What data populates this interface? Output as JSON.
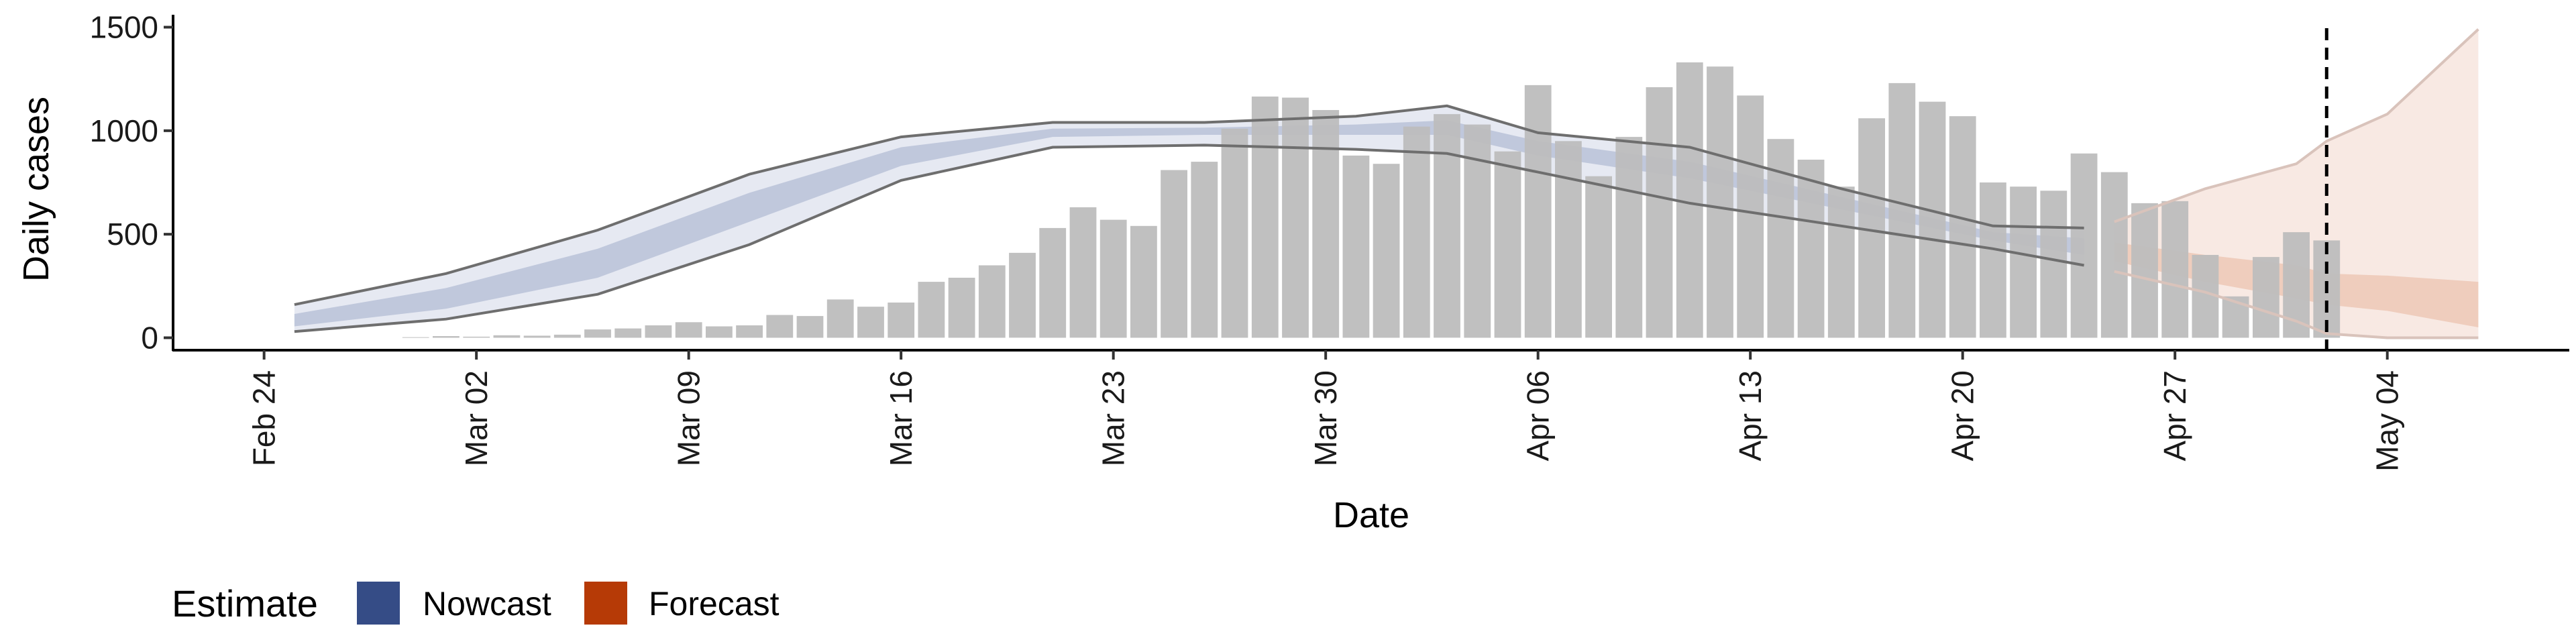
{
  "chart_data": {
    "type": "bar",
    "x_type": "date",
    "xlabel": "Date",
    "ylabel": "Daily cases",
    "x_ticks": [
      "2020-02-24",
      "2020-03-02",
      "2020-03-09",
      "2020-03-16",
      "2020-03-23",
      "2020-03-30",
      "2020-04-06",
      "2020-04-13",
      "2020-04-20",
      "2020-04-27",
      "2020-05-04"
    ],
    "x_tick_labels": [
      "Feb 24",
      "Mar 02",
      "Mar 09",
      "Mar 16",
      "Mar 23",
      "Mar 30",
      "Apr 06",
      "Apr 13",
      "Apr 20",
      "Apr 27",
      "May 04"
    ],
    "xlim": [
      "2020-02-21",
      "2020-05-10"
    ],
    "ylim": [
      -60,
      1560
    ],
    "y_ticks": [
      0,
      500,
      1000,
      1500
    ],
    "y_tick_labels": [
      "0",
      "500",
      "1000",
      "1500"
    ],
    "grid": false,
    "legend": {
      "title": "Estimate",
      "position": "bottom-left",
      "items": [
        {
          "label": "Nowcast",
          "color": "#354c86"
        },
        {
          "label": "Forecast",
          "color": "#b63a06"
        }
      ]
    },
    "colors": {
      "bars": "#bdbdbd",
      "nowcast_outer": "#e6e9f2",
      "nowcast_inner": "#c0c8dc",
      "forecast_outer": "#f8e9e3",
      "forecast_inner": "#efcdbd",
      "bound_line": "#6e6e6e",
      "forecast_line": "#d9c3bb",
      "divider": "#000000"
    },
    "bars": {
      "dates": [
        "2020-02-29",
        "2020-03-01",
        "2020-03-02",
        "2020-03-03",
        "2020-03-04",
        "2020-03-05",
        "2020-03-06",
        "2020-03-07",
        "2020-03-08",
        "2020-03-09",
        "2020-03-10",
        "2020-03-11",
        "2020-03-12",
        "2020-03-13",
        "2020-03-14",
        "2020-03-15",
        "2020-03-16",
        "2020-03-17",
        "2020-03-18",
        "2020-03-19",
        "2020-03-20",
        "2020-03-21",
        "2020-03-22",
        "2020-03-23",
        "2020-03-24",
        "2020-03-25",
        "2020-03-26",
        "2020-03-27",
        "2020-03-28",
        "2020-03-29",
        "2020-03-30",
        "2020-03-31",
        "2020-04-01",
        "2020-04-02",
        "2020-04-03",
        "2020-04-04",
        "2020-04-05",
        "2020-04-06",
        "2020-04-07",
        "2020-04-08",
        "2020-04-09",
        "2020-04-10",
        "2020-04-11",
        "2020-04-12",
        "2020-04-13",
        "2020-04-14",
        "2020-04-15",
        "2020-04-16",
        "2020-04-17",
        "2020-04-18",
        "2020-04-19",
        "2020-04-20",
        "2020-04-21",
        "2020-04-22",
        "2020-04-23",
        "2020-04-24",
        "2020-04-25",
        "2020-04-26",
        "2020-04-27",
        "2020-04-28",
        "2020-04-29",
        "2020-04-30",
        "2020-05-01",
        "2020-05-02"
      ],
      "values": [
        3,
        8,
        5,
        12,
        10,
        15,
        40,
        45,
        60,
        75,
        55,
        60,
        110,
        105,
        185,
        150,
        170,
        270,
        290,
        350,
        410,
        530,
        630,
        570,
        540,
        810,
        850,
        1010,
        1165,
        1160,
        1100,
        880,
        840,
        1020,
        1080,
        1030,
        900,
        1220,
        950,
        780,
        970,
        1210,
        1330,
        1310,
        1170,
        960,
        860,
        730,
        1060,
        1230,
        1140,
        1070,
        750,
        730,
        710,
        890,
        800,
        650,
        660,
        400,
        200,
        390,
        510,
        470
      ]
    },
    "nowcast": {
      "dates": [
        "2020-02-25",
        "2020-03-01",
        "2020-03-06",
        "2020-03-11",
        "2020-03-16",
        "2020-03-21",
        "2020-03-26",
        "2020-03-31",
        "2020-04-03",
        "2020-04-06",
        "2020-04-11",
        "2020-04-16",
        "2020-04-21",
        "2020-04-24"
      ],
      "outer_low": [
        30,
        90,
        210,
        450,
        760,
        920,
        930,
        910,
        890,
        800,
        650,
        540,
        430,
        350
      ],
      "outer_high": [
        160,
        310,
        520,
        790,
        970,
        1040,
        1040,
        1070,
        1120,
        990,
        920,
        720,
        540,
        530
      ],
      "inner_low": [
        55,
        140,
        290,
        560,
        830,
        970,
        980,
        980,
        980,
        880,
        770,
        620,
        470,
        400
      ],
      "inner_high": [
        115,
        240,
        430,
        700,
        920,
        1010,
        1015,
        1030,
        1050,
        950,
        850,
        680,
        510,
        480
      ]
    },
    "forecast": {
      "dates": [
        "2020-04-25",
        "2020-04-28",
        "2020-05-01",
        "2020-05-02",
        "2020-05-04",
        "2020-05-07"
      ],
      "outer_low": [
        320,
        220,
        80,
        20,
        0,
        0
      ],
      "outer_high": [
        560,
        720,
        840,
        950,
        1080,
        1490
      ],
      "inner_low": [
        370,
        270,
        190,
        160,
        130,
        50
      ],
      "inner_high": [
        460,
        400,
        350,
        310,
        300,
        270
      ]
    },
    "vline_date": "2020-05-02"
  }
}
